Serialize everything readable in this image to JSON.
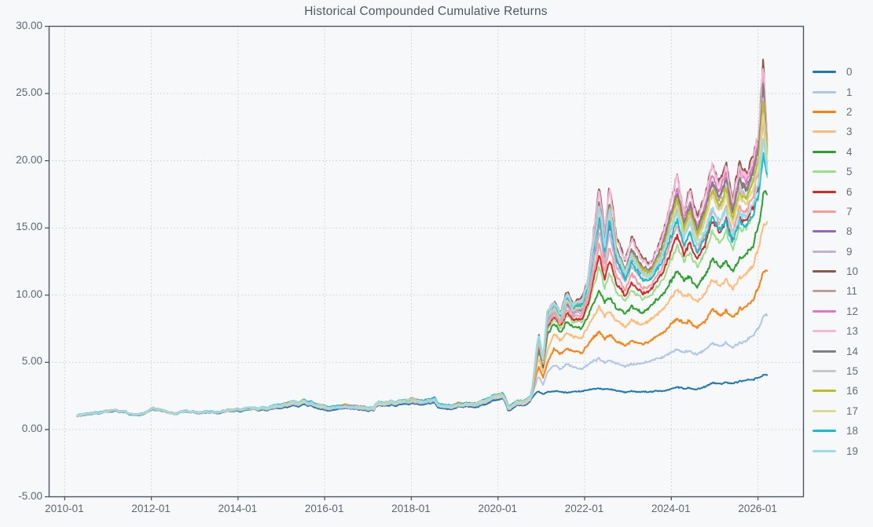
{
  "header": {
    "title": "Historical Compounded Cumulative Returns"
  },
  "theme": {
    "background": "#f7f8f9",
    "axis_color": "#4a5565",
    "grid_color": "#c9cdd3",
    "tick_label_color": "#5d6673",
    "title_color": "#4d5866",
    "legend_text_color": "#646d79"
  },
  "chart_data": {
    "type": "line",
    "title": "Historical Compounded Cumulative Returns",
    "xlabel": "",
    "ylabel": "",
    "grid": "dotted",
    "legend_position": "right-outside",
    "ylim": [
      -5,
      30
    ],
    "xlim_years": [
      2009.64,
      2027.05
    ],
    "y_ticks": [
      {
        "label": "30.00",
        "value": 30
      },
      {
        "label": "25.00",
        "value": 25
      },
      {
        "label": "20.00",
        "value": 20
      },
      {
        "label": "15.00",
        "value": 15
      },
      {
        "label": "10.00",
        "value": 10
      },
      {
        "label": "5.00",
        "value": 5
      },
      {
        "label": "0.00",
        "value": 0
      },
      {
        "label": "-5.00",
        "value": -5
      }
    ],
    "x_ticks": [
      {
        "label": "2010-01",
        "year": 2010
      },
      {
        "label": "2012-01",
        "year": 2012
      },
      {
        "label": "2014-01",
        "year": 2014
      },
      {
        "label": "2016-01",
        "year": 2016
      },
      {
        "label": "2018-01",
        "year": 2018
      },
      {
        "label": "2020-01",
        "year": 2020
      },
      {
        "label": "2022-01",
        "year": 2022
      },
      {
        "label": "2024-01",
        "year": 2024
      },
      {
        "label": "2026-01",
        "year": 2026
      }
    ],
    "data_start_year": 2010.3,
    "data_end_year": 2026.22,
    "start_value": 1.0,
    "divergence_year": 2020.7,
    "common_t": [
      2010.3,
      2010.55,
      2010.8,
      2011.0,
      2011.15,
      2011.4,
      2011.6,
      2011.8,
      2012.05,
      2012.25,
      2012.55,
      2012.8,
      2013.1,
      2013.5,
      2014.0,
      2014.6,
      2015.0,
      2015.3,
      2015.42,
      2015.55,
      2015.7,
      2015.9,
      2016.1,
      2016.5,
      2016.9,
      2017.15,
      2017.18,
      2017.5,
      2018.0,
      2018.3,
      2018.55,
      2018.62,
      2018.95,
      2019.1,
      2019.45,
      2019.6,
      2019.95,
      2020.1,
      2020.16,
      2020.25,
      2020.45,
      2020.7,
      2020.95
    ],
    "common_v": [
      1.0,
      1.12,
      1.28,
      1.38,
      1.45,
      1.28,
      1.08,
      1.1,
      1.48,
      1.38,
      1.14,
      1.36,
      1.26,
      1.32,
      1.4,
      1.52,
      1.78,
      2.05,
      1.9,
      2.02,
      1.95,
      1.65,
      1.45,
      1.6,
      1.52,
      1.58,
      1.85,
      1.95,
      2.1,
      2.0,
      2.2,
      1.8,
      1.62,
      1.85,
      1.82,
      1.95,
      2.35,
      2.4,
      2.1,
      1.45,
      1.85,
      2.1,
      2.45
    ],
    "spread_t": [
      2010.3,
      2013.0,
      2014.5,
      2015.2,
      2015.8,
      2016.3,
      2017.1,
      2017.3,
      2018.0,
      2019.0,
      2020.0,
      2020.5,
      2020.95
    ],
    "spread_amp": [
      0.1,
      0.1,
      0.16,
      0.4,
      0.34,
      0.26,
      0.26,
      0.34,
      0.36,
      0.34,
      0.4,
      0.42,
      0.5
    ],
    "post_t": [
      2020.7,
      2020.8,
      2020.95,
      2021.05,
      2021.15,
      2021.3,
      2021.45,
      2021.6,
      2021.75,
      2021.95,
      2022.1,
      2022.35,
      2022.47,
      2022.58,
      2022.75,
      2022.95,
      2023.1,
      2023.35,
      2023.55,
      2023.75,
      2023.95,
      2024.15,
      2024.3,
      2024.45,
      2024.62,
      2024.8,
      2024.95,
      2025.1,
      2025.28,
      2025.42,
      2025.58,
      2025.75,
      2025.9,
      2026.02,
      2026.13,
      2026.22
    ],
    "profiles": {
      "s0": [
        2.5,
        2.6,
        2.75,
        2.6,
        2.75,
        2.8,
        2.78,
        2.75,
        2.8,
        2.85,
        2.9,
        3.0,
        2.9,
        2.95,
        2.85,
        2.7,
        2.85,
        2.8,
        2.78,
        2.85,
        2.9,
        3.1,
        3.0,
        3.05,
        3.0,
        3.2,
        3.45,
        3.4,
        3.5,
        3.4,
        3.55,
        3.6,
        3.7,
        3.8,
        3.95,
        4.05
      ],
      "s1": [
        2.5,
        2.9,
        3.9,
        3.3,
        4.2,
        4.7,
        4.5,
        4.9,
        4.6,
        4.5,
        4.8,
        5.2,
        4.9,
        5.1,
        4.9,
        4.6,
        4.9,
        5.0,
        5.1,
        5.3,
        5.6,
        5.9,
        5.7,
        5.8,
        5.6,
        5.9,
        6.4,
        6.2,
        6.5,
        6.0,
        6.4,
        6.6,
        7.0,
        7.6,
        8.3,
        8.55
      ],
      "s2": [
        2.5,
        3.2,
        4.6,
        3.8,
        4.9,
        5.9,
        5.6,
        6.1,
        5.8,
        5.7,
        6.3,
        7.2,
        6.6,
        7.0,
        6.5,
        6.1,
        6.6,
        6.4,
        6.6,
        7.0,
        7.5,
        8.2,
        7.8,
        8.0,
        7.6,
        8.1,
        8.9,
        8.5,
        8.9,
        8.2,
        8.8,
        9.1,
        9.6,
        10.6,
        11.6,
        11.9
      ],
      "s3": [
        2.5,
        3.5,
        5.2,
        4.3,
        5.8,
        7.0,
        6.6,
        7.3,
        6.9,
        6.8,
        7.6,
        9.0,
        8.2,
        8.7,
        8.0,
        7.5,
        8.2,
        7.9,
        8.2,
        8.7,
        9.4,
        10.3,
        9.8,
        10.0,
        9.5,
        10.2,
        11.2,
        10.7,
        11.2,
        10.3,
        11.1,
        11.5,
        12.2,
        13.5,
        15.0,
        15.4
      ],
      "band_low": [
        2.5,
        3.7,
        5.8,
        4.6,
        7.0,
        7.8,
        7.2,
        8.1,
        7.6,
        7.5,
        8.4,
        10.2,
        9.2,
        9.8,
        9.0,
        8.4,
        9.2,
        8.8,
        9.2,
        9.8,
        10.6,
        11.7,
        11.0,
        11.3,
        10.7,
        11.5,
        12.7,
        12.1,
        12.7,
        11.6,
        12.6,
        13.0,
        13.8,
        15.3,
        17.3,
        17.8
      ],
      "band_high": [
        2.5,
        4.0,
        7.0,
        5.2,
        8.8,
        9.4,
        8.7,
        10.4,
        9.4,
        9.8,
        11.3,
        17.9,
        14.3,
        18.1,
        14.2,
        12.3,
        14.4,
        12.8,
        12.4,
        13.9,
        16.2,
        18.8,
        16.0,
        17.9,
        15.8,
        17.7,
        19.9,
        18.4,
        20.2,
        16.9,
        19.6,
        18.8,
        20.5,
        22.0,
        27.2,
        21.6
      ]
    },
    "series": [
      {
        "label": "0",
        "color": "#1f77b4",
        "profile": "s0",
        "fpre": 0.0,
        "end_value": 4.05
      },
      {
        "label": "1",
        "color": "#aec7e8",
        "profile": "s1",
        "fpre": 0.35,
        "end_value": 8.55
      },
      {
        "label": "2",
        "color": "#ff7f0e",
        "profile": "s2",
        "fpre": 0.9,
        "end_value": 11.9
      },
      {
        "label": "3",
        "color": "#ffbb78",
        "profile": "s3",
        "fpre": 0.78,
        "end_value": 15.4
      },
      {
        "label": "4",
        "color": "#2ca02c",
        "profile": "band",
        "fpre": 0.82,
        "f_start": 0.0,
        "f_end": 0.0,
        "end_value": 17.8
      },
      {
        "label": "5",
        "color": "#98df8a",
        "profile": "band",
        "fpre": 0.5,
        "f_start": 0.18,
        "f_end": 0.32,
        "end_value": 19.0
      },
      {
        "label": "6",
        "color": "#d62728",
        "profile": "band",
        "fpre": 0.62,
        "f_start": 0.3,
        "f_end": 0.42,
        "end_value": 19.4
      },
      {
        "label": "7",
        "color": "#ff9896",
        "profile": "band",
        "fpre": 0.46,
        "f_start": 0.4,
        "f_end": 0.55,
        "end_value": 19.9
      },
      {
        "label": "8",
        "color": "#9467bd",
        "profile": "band",
        "fpre": 0.42,
        "f_start": 0.55,
        "f_end": 0.87,
        "end_value": 21.1
      },
      {
        "label": "9",
        "color": "#c5b0d5",
        "profile": "band",
        "fpre": 0.32,
        "f_start": 0.48,
        "f_end": 0.76,
        "end_value": 20.7
      },
      {
        "label": "10",
        "color": "#8c564b",
        "profile": "band",
        "fpre": 0.58,
        "f_start": 1.0,
        "f_end": 1.0,
        "end_value": 21.6
      },
      {
        "label": "11",
        "color": "#c49c94",
        "profile": "band",
        "fpre": 0.52,
        "f_start": 0.62,
        "f_end": 0.84,
        "end_value": 21.0
      },
      {
        "label": "12",
        "color": "#e377c2",
        "profile": "band",
        "fpre": 0.68,
        "f_start": 0.75,
        "f_end": 0.92,
        "end_value": 21.3
      },
      {
        "label": "13",
        "color": "#f7b6d2",
        "profile": "band",
        "fpre": 0.36,
        "f_start": 0.97,
        "f_end": 0.97,
        "end_value": 21.5
      },
      {
        "label": "14",
        "color": "#7f7f7f",
        "profile": "band",
        "fpre": 0.6,
        "f_start": 0.85,
        "f_end": 0.82,
        "end_value": 20.9
      },
      {
        "label": "15",
        "color": "#c7c7c7",
        "profile": "band",
        "fpre": 0.44,
        "f_start": 0.7,
        "f_end": 0.74,
        "end_value": 20.6
      },
      {
        "label": "16",
        "color": "#bcbd22",
        "profile": "band",
        "fpre": 0.72,
        "f_start": 0.88,
        "f_end": 0.68,
        "end_value": 20.4
      },
      {
        "label": "17",
        "color": "#dbdb8d",
        "profile": "band",
        "fpre": 0.56,
        "f_start": 0.8,
        "f_end": 0.61,
        "end_value": 20.2
      },
      {
        "label": "18",
        "color": "#17becf",
        "profile": "band",
        "fpre": 0.85,
        "f_start": 0.92,
        "f_end": 0.3,
        "end_value": 18.9
      },
      {
        "label": "19",
        "color": "#9edae5",
        "profile": "band",
        "fpre": 0.75,
        "f_start": 1.0,
        "f_end": 0.42,
        "end_value": 19.3
      }
    ]
  }
}
